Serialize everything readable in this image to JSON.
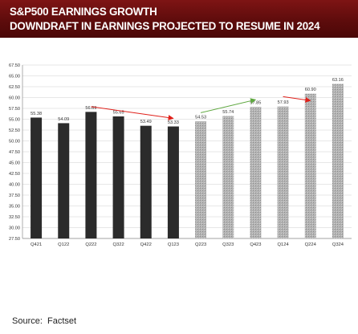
{
  "header": {
    "title_line1": "S&P500 EARNINGS GROWTH",
    "title_line2": "DOWNDRAFT IN EARNINGS PROJECTED TO RESUME IN 2024"
  },
  "source_text": "Source:  Factset",
  "colors": {
    "header_bg": "#6b1010",
    "actual_bar": "#2b2b2b",
    "projected_bar": "#a8a8a8",
    "down_arrow": "#e0201a",
    "up_arrow": "#5fa840",
    "recent_arrow": "#e0201a"
  },
  "chart_data": {
    "type": "bar",
    "categories": [
      "Q421",
      "Q122",
      "Q222",
      "Q322",
      "Q422",
      "Q123",
      "Q223",
      "Q323",
      "Q423",
      "Q124",
      "Q224",
      "Q324"
    ],
    "values": [
      55.38,
      54.09,
      56.69,
      55.65,
      53.49,
      53.33,
      54.53,
      55.74,
      57.85,
      57.93,
      60.9,
      63.16
    ],
    "value_labels": [
      "55.38",
      "54.09",
      "56.69",
      "55.65",
      "53.49",
      "53.33",
      "54.53",
      "55.74",
      "57.85",
      "57.93",
      "60.90",
      "63.16"
    ],
    "bar_style": [
      "actual",
      "actual",
      "actual",
      "actual",
      "actual",
      "actual",
      "projected",
      "projected",
      "projected",
      "projected",
      "projected",
      "projected"
    ],
    "title": "S&P500 EARNINGS GROWTH",
    "subtitle": "DOWNDRAFT IN EARNINGS PROJECTED TO RESUME IN 2024",
    "xlabel": "",
    "ylabel": "",
    "ylim": [
      27.5,
      67.5
    ],
    "ytick_step": 2.5,
    "grid": true,
    "legend": "none",
    "annotations": [
      {
        "type": "arrow",
        "color": "red",
        "from_category": "Q222",
        "from_value": 57.9,
        "to_category": "Q123",
        "to_value": 55.2
      },
      {
        "type": "arrow",
        "color": "green",
        "from_category": "Q223",
        "from_value": 56.5,
        "to_category": "Q423",
        "to_value": 59.5
      },
      {
        "type": "arrow",
        "color": "red",
        "from_category": "Q124",
        "from_value": 60.2,
        "to_category": "Q224",
        "to_value": 59.3
      }
    ]
  }
}
